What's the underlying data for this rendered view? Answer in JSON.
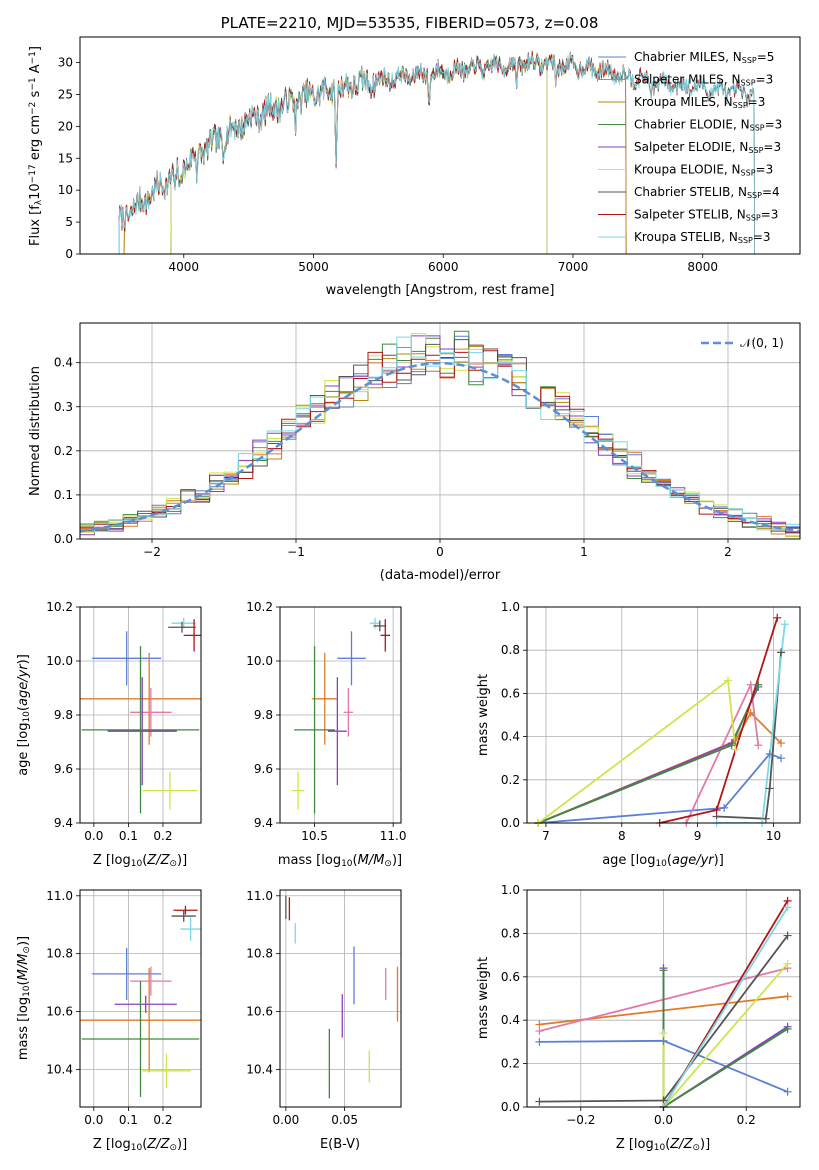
{
  "palette": {
    "Chabrier MILES": "#5b7fd6",
    "Salpeter MILES": "#e07b27",
    "Kroupa MILES": "#b8860b",
    "Chabrier ELODIE": "#3f8a3f",
    "Salpeter ELODIE": "#8e3fbf",
    "Kroupa ELODIE": "#cde64a",
    "Chabrier STELIB": "#555555",
    "Salpeter STELIB": "#b01616",
    "Kroupa STELIB": "#79d9e4",
    "ELODIE-pink": "#e07aaa",
    "normal": "#5b8fd6"
  },
  "chart_data": [
    {
      "id": "spectrum",
      "type": "line",
      "title": "PLATE=2210, MJD=53535, FIBERID=0573, z=0.08",
      "xlabel": "wavelength [Angstrom, rest frame]",
      "ylabel": "Flux [fλ10⁻¹⁷ erg cm⁻² s⁻¹ A⁻¹]",
      "xlim": [
        3200,
        8750
      ],
      "ylim": [
        0,
        34
      ],
      "xticks": [
        4000,
        5000,
        6000,
        7000,
        8000
      ],
      "yticks": [
        0,
        5,
        10,
        15,
        20,
        25,
        30
      ],
      "legend_position": "top-right",
      "legend": [
        {
          "model": "Chabrier MILES",
          "label": "Chabrier MILES, N",
          "sub": "SSP",
          "val": "=5"
        },
        {
          "model": "Salpeter MILES",
          "label": "Salpeter MILES, N",
          "sub": "SSP",
          "val": "=3"
        },
        {
          "model": "Kroupa MILES",
          "label": "Kroupa MILES, N",
          "sub": "SSP",
          "val": "=3"
        },
        {
          "model": "Chabrier ELODIE",
          "label": "Chabrier ELODIE, N",
          "sub": "SSP",
          "val": "=3"
        },
        {
          "model": "Salpeter ELODIE",
          "label": "Salpeter ELODIE, N",
          "sub": "SSP",
          "val": "=3"
        },
        {
          "model": "Kroupa ELODIE",
          "label": "Kroupa ELODIE, N",
          "sub": "SSP",
          "val": "=3"
        },
        {
          "model": "Chabrier STELIB",
          "label": "Chabrier STELIB, N",
          "sub": "SSP",
          "val": "=4"
        },
        {
          "model": "Salpeter STELIB",
          "label": "Salpeter STELIB, N",
          "sub": "SSP",
          "val": "=3"
        },
        {
          "model": "Kroupa STELIB",
          "label": "Kroupa STELIB, N",
          "sub": "SSP",
          "val": "=3"
        }
      ],
      "continuum": [
        [
          3500,
          5
        ],
        [
          3700,
          8.5
        ],
        [
          3900,
          12
        ],
        [
          4100,
          15.5
        ],
        [
          4300,
          18.5
        ],
        [
          4500,
          21
        ],
        [
          4700,
          23
        ],
        [
          5000,
          25
        ],
        [
          5300,
          26.5
        ],
        [
          5600,
          27.5
        ],
        [
          5900,
          28.3
        ],
        [
          6200,
          29
        ],
        [
          6500,
          29.6
        ],
        [
          6700,
          30
        ],
        [
          7000,
          29.5
        ],
        [
          7300,
          28.5
        ],
        [
          7600,
          27
        ],
        [
          8000,
          26
        ],
        [
          8400,
          25
        ]
      ],
      "absorption_features": [
        [
          3934,
          4
        ],
        [
          3969,
          4
        ],
        [
          4101,
          3
        ],
        [
          4304,
          3
        ],
        [
          4861,
          3
        ],
        [
          5175,
          12
        ],
        [
          5890,
          5
        ],
        [
          6563,
          4
        ],
        [
          6867,
          3
        ],
        [
          7600,
          2
        ]
      ],
      "model_ranges": {
        "Chabrier MILES": [
          3540,
          7410
        ],
        "Salpeter MILES": [
          3540,
          7410
        ],
        "Kroupa MILES": [
          3540,
          7410
        ],
        "Chabrier ELODIE": [
          3900,
          6800
        ],
        "Salpeter ELODIE": [
          3900,
          6800
        ],
        "Kroupa ELODIE": [
          3900,
          6800
        ],
        "Chabrier STELIB": [
          3500,
          8400
        ],
        "Salpeter STELIB": [
          3500,
          8400
        ],
        "Kroupa STELIB": [
          3500,
          8400
        ]
      }
    },
    {
      "id": "residuals",
      "type": "bar",
      "xlabel": "(data-model)/error",
      "ylabel": "Normed distribution",
      "xlim": [
        -2.5,
        2.5
      ],
      "ylim": [
        0,
        0.49
      ],
      "xticks": [
        -2,
        -1,
        0,
        1,
        2
      ],
      "yticks": [
        0.0,
        0.1,
        0.2,
        0.3,
        0.4
      ],
      "bin_width": 0.1,
      "legend_position": "top-right",
      "legend": [
        {
          "label": "𝒩(0, 1)"
        }
      ],
      "series": [
        {
          "model": "Chabrier MILES"
        },
        {
          "model": "Salpeter MILES"
        },
        {
          "model": "Kroupa MILES"
        },
        {
          "model": "Chabrier ELODIE"
        },
        {
          "model": "Salpeter ELODIE"
        },
        {
          "model": "Kroupa ELODIE"
        },
        {
          "model": "Chabrier STELIB"
        },
        {
          "model": "Salpeter STELIB"
        },
        {
          "model": "Kroupa STELIB"
        }
      ]
    },
    {
      "id": "age-vs-Z",
      "type": "scatter",
      "xlabel": "Z [log₁₀(Z/Z⊙)]",
      "ylabel": "age  [log₁₀(age/yr)]",
      "xlim": [
        -0.04,
        0.31
      ],
      "ylim": [
        9.4,
        10.2
      ],
      "xticks": [
        0.0,
        0.1,
        0.2
      ],
      "yticks": [
        9.4,
        9.6,
        9.8,
        10.0,
        10.2
      ],
      "points": [
        {
          "model": "Chabrier MILES",
          "x": 0.095,
          "xerr": 0.1,
          "y": 10.01,
          "yerr": 0.1
        },
        {
          "model": "Salpeter MILES",
          "x": 0.16,
          "xerr": 0.22,
          "y": 9.86,
          "yerr": 0.17
        },
        {
          "model": "ELODIE-pink",
          "x": 0.165,
          "xerr": 0.06,
          "y": 9.81,
          "yerr": 0.09
        },
        {
          "model": "Salpeter ELODIE",
          "x": 0.14,
          "xerr": 0.1,
          "y": 9.74,
          "yerr": 0.2
        },
        {
          "model": "Chabrier ELODIE",
          "x": 0.135,
          "xerr": 0.17,
          "y": 9.745,
          "yerr": 0.31
        },
        {
          "model": "Kroupa ELODIE",
          "x": 0.22,
          "xerr": 0.08,
          "y": 9.52,
          "yerr": 0.07
        },
        {
          "model": "Kroupa STELIB",
          "x": 0.26,
          "xerr": 0.035,
          "y": 10.14,
          "yerr": 0.02
        },
        {
          "model": "Chabrier STELIB",
          "x": 0.255,
          "xerr": 0.04,
          "y": 10.125,
          "yerr": 0.02
        },
        {
          "model": "Salpeter STELIB",
          "x": 0.29,
          "xerr": 0.03,
          "y": 10.095,
          "yerr": 0.06
        }
      ]
    },
    {
      "id": "age-vs-mass",
      "type": "scatter",
      "xlabel": "mass [log₁₀(M/M⊙)]",
      "ylabel": "",
      "xlim": [
        10.28,
        11.05
      ],
      "ylim": [
        9.4,
        10.2
      ],
      "xticks": [
        10.5,
        11.0
      ],
      "yticks": [
        9.4,
        9.6,
        9.8,
        10.0,
        10.2
      ],
      "points": [
        {
          "model": "Chabrier MILES",
          "x": 10.735,
          "xerr": 0.09,
          "y": 10.01,
          "yerr": 0.1
        },
        {
          "model": "Salpeter MILES",
          "x": 10.565,
          "xerr": 0.08,
          "y": 9.86,
          "yerr": 0.17
        },
        {
          "model": "ELODIE-pink",
          "x": 10.715,
          "xerr": 0.03,
          "y": 9.81,
          "yerr": 0.09
        },
        {
          "model": "Salpeter ELODIE",
          "x": 10.645,
          "xerr": 0.06,
          "y": 9.74,
          "yerr": 0.2
        },
        {
          "model": "Chabrier ELODIE",
          "x": 10.5,
          "xerr": 0.13,
          "y": 9.745,
          "yerr": 0.31
        },
        {
          "model": "Kroupa ELODIE",
          "x": 10.395,
          "xerr": 0.04,
          "y": 9.52,
          "yerr": 0.07
        },
        {
          "model": "Kroupa STELIB",
          "x": 10.885,
          "xerr": 0.035,
          "y": 10.14,
          "yerr": 0.02
        },
        {
          "model": "Chabrier STELIB",
          "x": 10.915,
          "xerr": 0.04,
          "y": 10.13,
          "yerr": 0.02
        },
        {
          "model": "Salpeter STELIB",
          "x": 10.95,
          "xerr": 0.03,
          "y": 10.095,
          "yerr": 0.06
        }
      ]
    },
    {
      "id": "weight-vs-age",
      "type": "line",
      "xlabel": "age  [log₁₀(age/yr)]",
      "ylabel": "mass weight",
      "xlim": [
        6.75,
        10.35
      ],
      "ylim": [
        0,
        1.0
      ],
      "xticks": [
        7,
        8,
        9,
        10
      ],
      "yticks": [
        0.0,
        0.2,
        0.4,
        0.6,
        0.8,
        1.0
      ],
      "series": [
        {
          "model": "Chabrier MILES",
          "points": [
            [
              6.9,
              0.0
            ],
            [
              9.35,
              0.07
            ],
            [
              9.95,
              0.32
            ],
            [
              10.1,
              0.3
            ]
          ]
        },
        {
          "model": "Salpeter MILES",
          "points": [
            [
              6.9,
              0.0
            ],
            [
              9.5,
              0.38
            ],
            [
              9.7,
              0.51
            ],
            [
              10.1,
              0.37
            ]
          ]
        },
        {
          "model": "ELODIE-pink",
          "points": [
            [
              8.85,
              0.0
            ],
            [
              9.7,
              0.64
            ],
            [
              9.8,
              0.36
            ]
          ]
        },
        {
          "model": "Salpeter ELODIE",
          "points": [
            [
              6.9,
              0.0
            ],
            [
              9.45,
              0.37
            ],
            [
              9.8,
              0.63
            ]
          ]
        },
        {
          "model": "Chabrier ELODIE",
          "points": [
            [
              6.9,
              0.0
            ],
            [
              9.45,
              0.36
            ],
            [
              9.8,
              0.64
            ]
          ]
        },
        {
          "model": "Kroupa ELODIE",
          "points": [
            [
              6.9,
              0.0
            ],
            [
              9.4,
              0.66
            ],
            [
              9.5,
              0.34
            ]
          ]
        },
        {
          "model": "Chabrier STELIB",
          "points": [
            [
              9.25,
              0.03
            ],
            [
              9.9,
              0.02
            ],
            [
              9.95,
              0.16
            ],
            [
              10.1,
              0.79
            ]
          ]
        },
        {
          "model": "Salpeter STELIB",
          "points": [
            [
              8.5,
              0.0
            ],
            [
              9.25,
              0.06
            ],
            [
              10.05,
              0.95
            ]
          ]
        },
        {
          "model": "Kroupa STELIB",
          "points": [
            [
              9.25,
              0.0
            ],
            [
              9.85,
              0.0
            ],
            [
              10.15,
              0.92
            ]
          ]
        }
      ]
    },
    {
      "id": "mass-vs-Z",
      "type": "scatter",
      "xlabel": "Z [log₁₀(Z/Z⊙)]",
      "ylabel": "mass [log₁₀(M/M⊙)]",
      "xlim": [
        -0.04,
        0.31
      ],
      "ylim": [
        10.27,
        11.02
      ],
      "xticks": [
        0.0,
        0.1,
        0.2
      ],
      "yticks": [
        10.4,
        10.6,
        10.8,
        11.0
      ],
      "points": [
        {
          "model": "Chabrier MILES",
          "x": 0.095,
          "xerr": 0.1,
          "y": 10.73,
          "yerr": 0.09
        },
        {
          "model": "Salpeter MILES",
          "x": 0.16,
          "xerr": 0.22,
          "y": 10.57,
          "yerr": 0.18
        },
        {
          "model": "ELODIE-pink",
          "x": 0.165,
          "xerr": 0.06,
          "y": 10.705,
          "yerr": 0.05
        },
        {
          "model": "Salpeter ELODIE",
          "x": 0.15,
          "xerr": 0.09,
          "y": 10.625,
          "yerr": 0.03
        },
        {
          "model": "Chabrier ELODIE",
          "x": 0.135,
          "xerr": 0.17,
          "y": 10.505,
          "yerr": 0.2
        },
        {
          "model": "Kroupa ELODIE",
          "x": 0.21,
          "xerr": 0.07,
          "y": 10.395,
          "yerr": 0.06
        },
        {
          "model": "Salpeter STELIB",
          "x": 0.265,
          "xerr": 0.035,
          "y": 10.95,
          "yerr": 0.015
        },
        {
          "model": "Chabrier STELIB",
          "x": 0.26,
          "xerr": 0.035,
          "y": 10.93,
          "yerr": 0.02
        },
        {
          "model": "Kroupa STELIB",
          "x": 0.28,
          "xerr": 0.03,
          "y": 10.885,
          "yerr": 0.04
        }
      ]
    },
    {
      "id": "mass-vs-EBV",
      "type": "scatter",
      "xlabel": "E(B-V)",
      "ylabel": "",
      "xlim": [
        -0.005,
        0.098
      ],
      "ylim": [
        10.27,
        11.02
      ],
      "xticks": [
        0.0,
        0.05
      ],
      "yticks": [
        10.4,
        10.6,
        10.8,
        11.0
      ],
      "points": [
        {
          "model": "Chabrier STELIB",
          "x": 0.0,
          "y": 10.96,
          "yerr": 0.04
        },
        {
          "model": "Salpeter STELIB",
          "x": 0.003,
          "y": 10.955,
          "yerr": 0.04
        },
        {
          "model": "Kroupa STELIB",
          "x": 0.008,
          "y": 10.87,
          "yerr": 0.035
        },
        {
          "model": "Chabrier ELODIE",
          "x": 0.037,
          "y": 10.42,
          "yerr": 0.12
        },
        {
          "model": "Salpeter ELODIE",
          "x": 0.048,
          "y": 10.585,
          "yerr": 0.075
        },
        {
          "model": "Chabrier MILES",
          "x": 0.058,
          "y": 10.725,
          "yerr": 0.1
        },
        {
          "model": "Kroupa ELODIE",
          "x": 0.071,
          "y": 10.41,
          "yerr": 0.055
        },
        {
          "model": "ELODIE-pink",
          "x": 0.085,
          "y": 10.695,
          "yerr": 0.055
        },
        {
          "model": "Salpeter MILES",
          "x": 0.095,
          "y": 10.66,
          "yerr": 0.095
        }
      ]
    },
    {
      "id": "weight-vs-Z",
      "type": "line",
      "xlabel": "Z [log₁₀(Z/Z⊙)]",
      "ylabel": "mass weight",
      "xlim": [
        -0.33,
        0.33
      ],
      "ylim": [
        0,
        1.0
      ],
      "xticks": [
        -0.2,
        0.0,
        0.2
      ],
      "yticks": [
        0.0,
        0.2,
        0.4,
        0.6,
        0.8,
        1.0
      ],
      "series": [
        {
          "model": "Chabrier MILES",
          "points": [
            [
              -0.3,
              0.3
            ],
            [
              0.0,
              0.305
            ],
            [
              0.3,
              0.07
            ]
          ]
        },
        {
          "model": "Salpeter MILES",
          "points": [
            [
              -0.3,
              0.38
            ],
            [
              0.3,
              0.51
            ]
          ]
        },
        {
          "model": "ELODIE-pink",
          "points": [
            [
              -0.3,
              0.35
            ],
            [
              0.3,
              0.64
            ]
          ]
        },
        {
          "model": "Salpeter ELODIE",
          "points": [
            [
              0.0,
              0.64
            ],
            [
              0.0,
              0.0
            ],
            [
              0.3,
              0.37
            ]
          ]
        },
        {
          "model": "Chabrier ELODIE",
          "points": [
            [
              0.0,
              0.63
            ],
            [
              0.0,
              0.0
            ],
            [
              0.3,
              0.36
            ]
          ]
        },
        {
          "model": "Kroupa ELODIE",
          "points": [
            [
              0.0,
              0.34
            ],
            [
              0.0,
              0.0
            ],
            [
              0.3,
              0.66
            ]
          ]
        },
        {
          "model": "Chabrier STELIB",
          "points": [
            [
              -0.3,
              0.025
            ],
            [
              0.0,
              0.03
            ],
            [
              0.3,
              0.79
            ]
          ]
        },
        {
          "model": "Salpeter STELIB",
          "points": [
            [
              0.0,
              0.0
            ],
            [
              0.3,
              0.95
            ]
          ]
        },
        {
          "model": "Kroupa STELIB",
          "points": [
            [
              0.0,
              0.0
            ],
            [
              0.3,
              0.92
            ]
          ]
        }
      ]
    }
  ]
}
